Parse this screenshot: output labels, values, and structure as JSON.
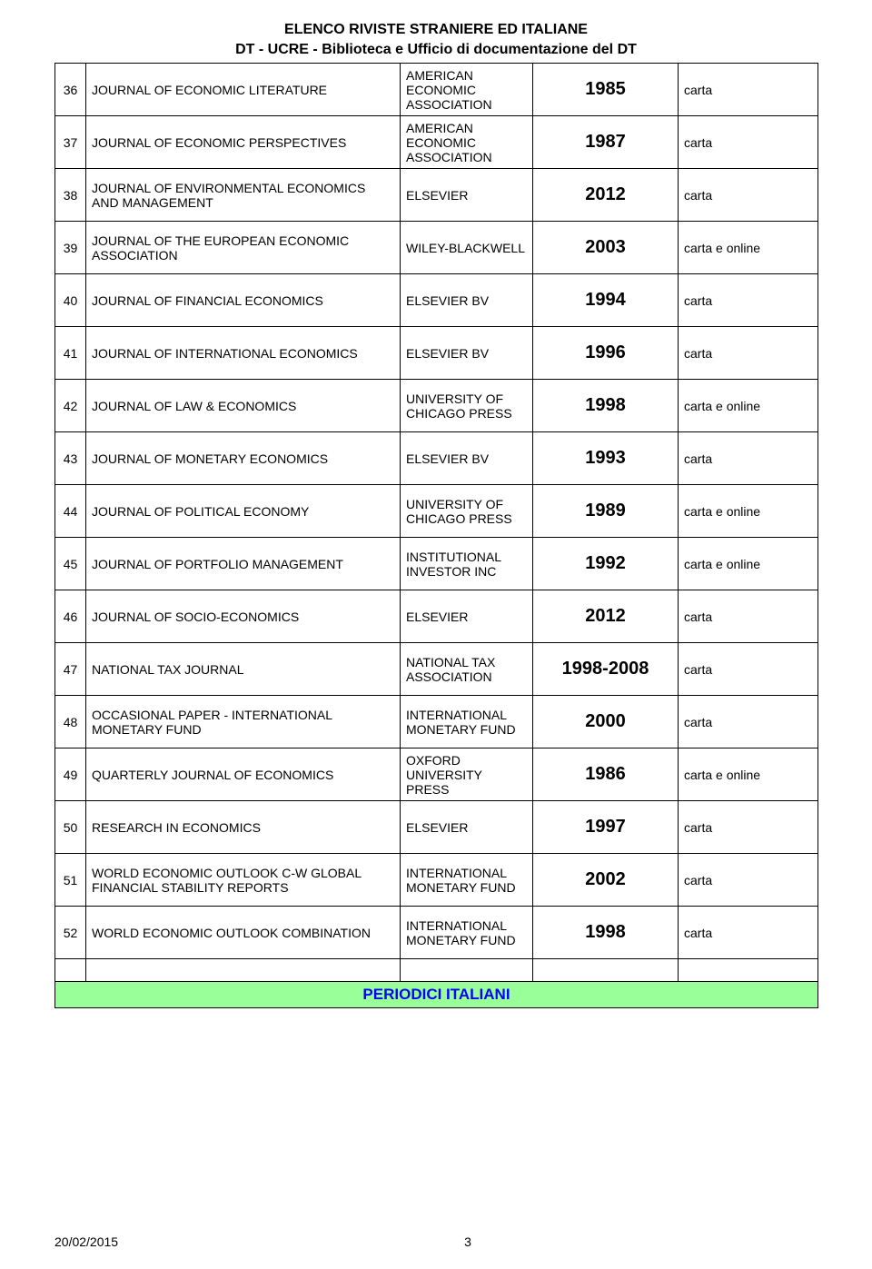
{
  "header": {
    "line1": "ELENCO RIVISTE STRANIERE ED ITALIANE",
    "line2": "DT - UCRE - Biblioteca e Ufficio di documentazione del DT"
  },
  "section": {
    "label": "PERIODICI ITALIANI",
    "bgcolor": "#99ff99",
    "color": "#0000ff"
  },
  "footer": {
    "date": "20/02/2015",
    "page": "3"
  },
  "columns": {
    "num_width": 34,
    "title_width": 346,
    "pub_width": 146,
    "year_width": 160,
    "format_width": 154
  },
  "rows": [
    {
      "num": "36",
      "title": "JOURNAL OF ECONOMIC LITERATURE",
      "pub": "AMERICAN ECONOMIC ASSOCIATION",
      "year": "1985",
      "format": "carta"
    },
    {
      "num": "37",
      "title": "JOURNAL OF ECONOMIC PERSPECTIVES",
      "pub": "AMERICAN ECONOMIC ASSOCIATION",
      "year": "1987",
      "format": "carta"
    },
    {
      "num": "38",
      "title": "JOURNAL OF ENVIRONMENTAL ECONOMICS AND MANAGEMENT",
      "pub": "ELSEVIER",
      "year": "2012",
      "format": "carta"
    },
    {
      "num": "39",
      "title": "JOURNAL OF THE EUROPEAN   ECONOMIC ASSOCIATION",
      "pub": "WILEY-BLACKWELL",
      "year": "2003",
      "format": "carta e online"
    },
    {
      "num": "40",
      "title": "JOURNAL OF FINANCIAL ECONOMICS",
      "pub": "ELSEVIER BV",
      "year": "1994",
      "format": "carta"
    },
    {
      "num": "41",
      "title": "JOURNAL OF INTERNATIONAL   ECONOMICS",
      "pub": "ELSEVIER BV",
      "year": "1996",
      "format": "carta"
    },
    {
      "num": "42",
      "title": "JOURNAL OF LAW & ECONOMICS",
      "pub": "UNIVERSITY OF CHICAGO PRESS",
      "year": "1998",
      "format": "carta e online"
    },
    {
      "num": "43",
      "title": "JOURNAL OF MONETARY ECONOMICS",
      "pub": "ELSEVIER BV",
      "year": "1993",
      "format": "carta"
    },
    {
      "num": "44",
      "title": "JOURNAL OF POLITICAL ECONOMY",
      "pub": "UNIVERSITY OF CHICAGO PRESS",
      "year": "1989",
      "format": "carta e online"
    },
    {
      "num": "45",
      "title": "JOURNAL OF PORTFOLIO   MANAGEMENT",
      "pub": "INSTITUTIONAL INVESTOR INC",
      "year": "1992",
      "format": "carta e online"
    },
    {
      "num": "46",
      "title": "JOURNAL OF SOCIO-ECONOMICS",
      "pub": "ELSEVIER",
      "year": "2012",
      "format": "carta"
    },
    {
      "num": "47",
      "title": "NATIONAL TAX JOURNAL",
      "pub": "NATIONAL TAX ASSOCIATION",
      "year": "1998-2008",
      "format": "carta"
    },
    {
      "num": "48",
      "title": "OCCASIONAL PAPER -   INTERNATIONAL MONETARY FUND",
      "pub": "INTERNATIONAL MONETARY FUND",
      "year": "2000",
      "format": "carta"
    },
    {
      "num": "49",
      "title": "QUARTERLY JOURNAL OF ECONOMICS",
      "pub": "OXFORD UNIVERSITY PRESS",
      "year": "1986",
      "format": "carta e online"
    },
    {
      "num": "50",
      "title": "RESEARCH IN ECONOMICS",
      "pub": "ELSEVIER",
      "year": "1997",
      "format": "carta"
    },
    {
      "num": "51",
      "title": "WORLD ECONOMIC OUTLOOK C-W   GLOBAL FINANCIAL STABILITY   REPORTS",
      "pub": "INTERNATIONAL MONETARY FUND",
      "year": "2002",
      "format": "carta"
    },
    {
      "num": "52",
      "title": "WORLD ECONOMIC OUTLOOK   COMBINATION",
      "pub": "INTERNATIONAL MONETARY FUND",
      "year": "1998",
      "format": "carta"
    }
  ]
}
